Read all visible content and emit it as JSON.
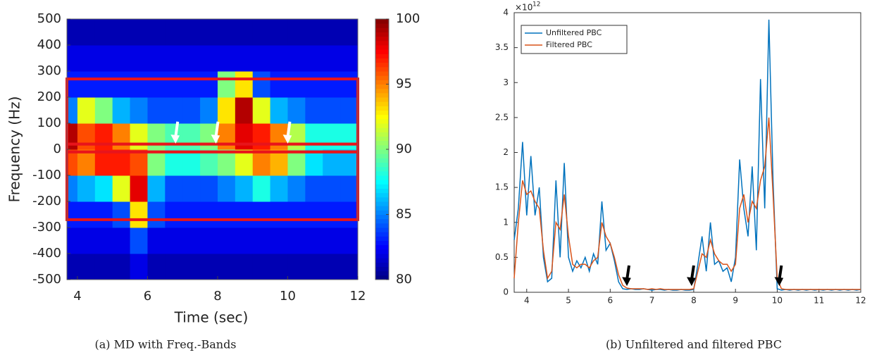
{
  "chart_data": [
    {
      "type": "heatmap",
      "caption": "(a) MD with Freq.-Bands",
      "xlabel": "Time (sec)",
      "ylabel": "Frequency (Hz)",
      "xlim": [
        3.7,
        12
      ],
      "xticks": [
        4,
        6,
        8,
        10,
        12
      ],
      "ylim": [
        -500,
        500
      ],
      "yticks": [
        -500,
        -400,
        -300,
        -200,
        -100,
        0,
        100,
        200,
        300,
        400,
        500
      ],
      "x_bins": [
        3.7,
        4,
        4.5,
        5,
        5.5,
        6,
        6.5,
        7,
        7.5,
        8,
        8.5,
        9,
        9.5,
        10,
        10.5,
        11,
        11.5,
        12
      ],
      "y_bins": [
        -500,
        -400,
        -300,
        -200,
        -100,
        0,
        100,
        200,
        300,
        400,
        500
      ],
      "z": [
        [
          81,
          81,
          81,
          81,
          82,
          81,
          81,
          81,
          81,
          81,
          81,
          81,
          81,
          81,
          81,
          81,
          81
        ],
        [
          82,
          82,
          82,
          82,
          84,
          82,
          82,
          82,
          82,
          82,
          82,
          82,
          82,
          82,
          82,
          82,
          82
        ],
        [
          83,
          83,
          83,
          84,
          93,
          84,
          83,
          83,
          83,
          83,
          83,
          83,
          83,
          83,
          83,
          83,
          83
        ],
        [
          85,
          86,
          87,
          92,
          98,
          86,
          84,
          84,
          84,
          85,
          86,
          88,
          86,
          85,
          84,
          84,
          84
        ],
        [
          96,
          95,
          97,
          97,
          96,
          90,
          88,
          88,
          89,
          90,
          92,
          95,
          94,
          90,
          87,
          86,
          86
        ],
        [
          99,
          96,
          97,
          95,
          92,
          90,
          89,
          89,
          90,
          95,
          98,
          97,
          95,
          91,
          88,
          88,
          88
        ],
        [
          85,
          92,
          90,
          86,
          85,
          84,
          84,
          84,
          85,
          93,
          99,
          92,
          86,
          85,
          84,
          84,
          84
        ],
        [
          83,
          83,
          83,
          83,
          83,
          83,
          83,
          83,
          83,
          90,
          93,
          84,
          83,
          83,
          83,
          83,
          83
        ],
        [
          82,
          82,
          82,
          82,
          82,
          82,
          82,
          82,
          82,
          82,
          82,
          82,
          82,
          82,
          82,
          82,
          82
        ],
        [
          81,
          81,
          81,
          81,
          81,
          81,
          81,
          81,
          81,
          81,
          81,
          81,
          81,
          81,
          81,
          81,
          81
        ]
      ],
      "zlim": [
        80,
        100
      ],
      "zticks": [
        80,
        85,
        90,
        95,
        100
      ],
      "colormap": "jet",
      "highlight_boxes": [
        [
          20,
          270
        ],
        [
          -10,
          20
        ],
        [
          -270,
          -10
        ]
      ],
      "box_color": "#e8141b",
      "arrows_x": [
        6.8,
        7.95,
        10
      ],
      "arrow_color": "#ffffff"
    },
    {
      "type": "line",
      "caption": "(b) Unfiltered and filtered PBC",
      "y_scale_label": {
        "base": "×10",
        "exponent": "12"
      },
      "xlim": [
        3.7,
        12
      ],
      "xticks": [
        4,
        5,
        6,
        7,
        8,
        9,
        10,
        11,
        12
      ],
      "ylim": [
        0,
        4
      ],
      "yticks": [
        0,
        0.5,
        1,
        1.5,
        2,
        2.5,
        3,
        3.5,
        4
      ],
      "legend": "top-left",
      "arrows_x": [
        6.4,
        7.95,
        10.05
      ],
      "arrow_color": "#000000",
      "x": [
        3.7,
        3.8,
        3.9,
        4,
        4.1,
        4.2,
        4.3,
        4.4,
        4.5,
        4.6,
        4.7,
        4.8,
        4.9,
        5,
        5.1,
        5.2,
        5.3,
        5.4,
        5.5,
        5.6,
        5.7,
        5.8,
        5.9,
        6,
        6.1,
        6.2,
        6.3,
        6.4,
        6.5,
        6.6,
        6.7,
        6.8,
        6.9,
        7,
        7.1,
        7.2,
        7.3,
        7.4,
        7.5,
        7.6,
        7.7,
        7.8,
        7.9,
        8,
        8.1,
        8.2,
        8.3,
        8.4,
        8.5,
        8.6,
        8.7,
        8.8,
        8.9,
        9,
        9.1,
        9.2,
        9.3,
        9.4,
        9.5,
        9.6,
        9.7,
        9.8,
        9.9,
        10,
        10.1,
        10.2,
        10.3,
        10.4,
        10.5,
        10.6,
        10.7,
        10.8,
        10.9,
        11,
        11.1,
        11.2,
        11.3,
        11.4,
        11.5,
        11.6,
        11.7,
        11.8,
        11.9,
        12
      ],
      "series": [
        {
          "name": "Unfiltered PBC",
          "color": "#0072bd",
          "values": [
            0.75,
            1.2,
            2.15,
            1.1,
            1.95,
            1.1,
            1.5,
            0.5,
            0.15,
            0.2,
            1.6,
            0.5,
            1.85,
            0.5,
            0.3,
            0.45,
            0.35,
            0.5,
            0.3,
            0.55,
            0.4,
            1.3,
            0.6,
            0.7,
            0.45,
            0.15,
            0.05,
            0.04,
            0.05,
            0.04,
            0.04,
            0.05,
            0.04,
            0.03,
            0.04,
            0.04,
            0.03,
            0.04,
            0.03,
            0.03,
            0.04,
            0.03,
            0.03,
            0.04,
            0.4,
            0.8,
            0.3,
            1,
            0.4,
            0.45,
            0.3,
            0.35,
            0.15,
            0.5,
            1.9,
            1.2,
            0.8,
            1.8,
            0.6,
            3.05,
            1.2,
            3.9,
            1.6,
            0.05,
            0.03,
            0.04,
            0.03,
            0.04,
            0.03,
            0.04,
            0.03,
            0.04,
            0.03,
            0.04,
            0.03,
            0.04,
            0.03,
            0.04,
            0.03,
            0.04,
            0.03,
            0.04,
            0.03,
            0.04
          ]
        },
        {
          "name": "Filtered PBC",
          "color": "#d95319",
          "values": [
            0.2,
            1,
            1.6,
            1.4,
            1.45,
            1.3,
            1.2,
            0.6,
            0.2,
            0.3,
            1,
            0.9,
            1.4,
            0.8,
            0.4,
            0.35,
            0.4,
            0.4,
            0.35,
            0.45,
            0.5,
            1,
            0.8,
            0.7,
            0.5,
            0.25,
            0.1,
            0.06,
            0.05,
            0.05,
            0.05,
            0.05,
            0.04,
            0.05,
            0.04,
            0.05,
            0.04,
            0.04,
            0.04,
            0.04,
            0.04,
            0.04,
            0.04,
            0.05,
            0.3,
            0.55,
            0.5,
            0.75,
            0.55,
            0.45,
            0.4,
            0.4,
            0.3,
            0.4,
            1.2,
            1.4,
            1,
            1.3,
            1.2,
            1.6,
            1.8,
            2.5,
            1.4,
            0.2,
            0.05,
            0.04,
            0.04,
            0.04,
            0.04,
            0.04,
            0.04,
            0.04,
            0.04,
            0.04,
            0.04,
            0.04,
            0.04,
            0.04,
            0.04,
            0.04,
            0.04,
            0.04,
            0.04,
            0.04
          ]
        }
      ]
    }
  ]
}
